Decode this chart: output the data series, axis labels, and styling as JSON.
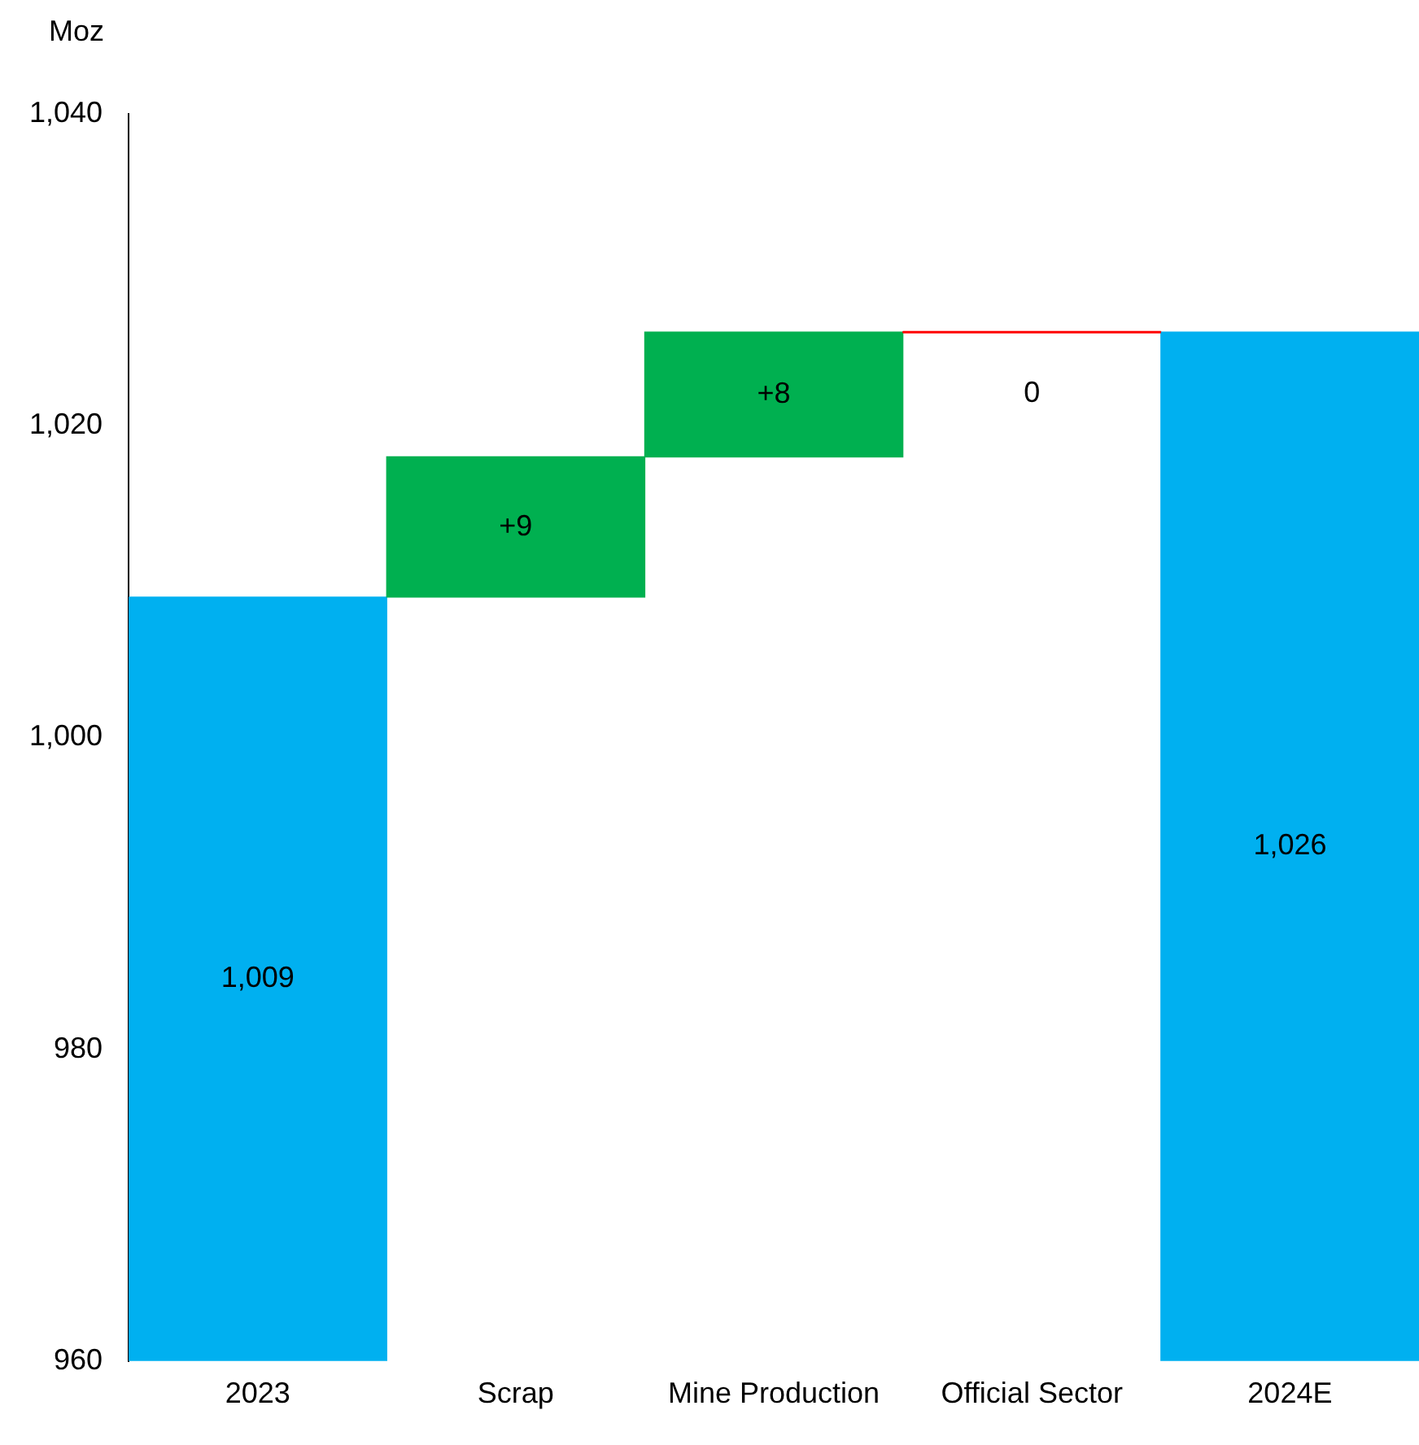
{
  "chart_data": {
    "type": "bar",
    "ylabel": "Moz",
    "categories": [
      "2023",
      "Scrap",
      "Mine Production",
      "Official Sector",
      "2024E"
    ],
    "values": [
      1009,
      9,
      8,
      0,
      1026
    ],
    "base": [
      null,
      1009,
      1018,
      1026,
      null
    ],
    "colors": [
      "#00b0f0",
      "#00b050",
      "#00b050",
      "#ff0000",
      "#00b0f0"
    ],
    "value_labels": [
      "1,009",
      "+9",
      "+8",
      "0",
      "1,026"
    ],
    "ylim": [
      960,
      1040
    ],
    "yticks": [
      960,
      980,
      {
        "value": 1000,
        "label": "1,000"
      },
      {
        "value": 1020,
        "label": "1,020"
      },
      {
        "value": 1040,
        "label": "1,040"
      }
    ],
    "grid": false,
    "legend": false
  }
}
